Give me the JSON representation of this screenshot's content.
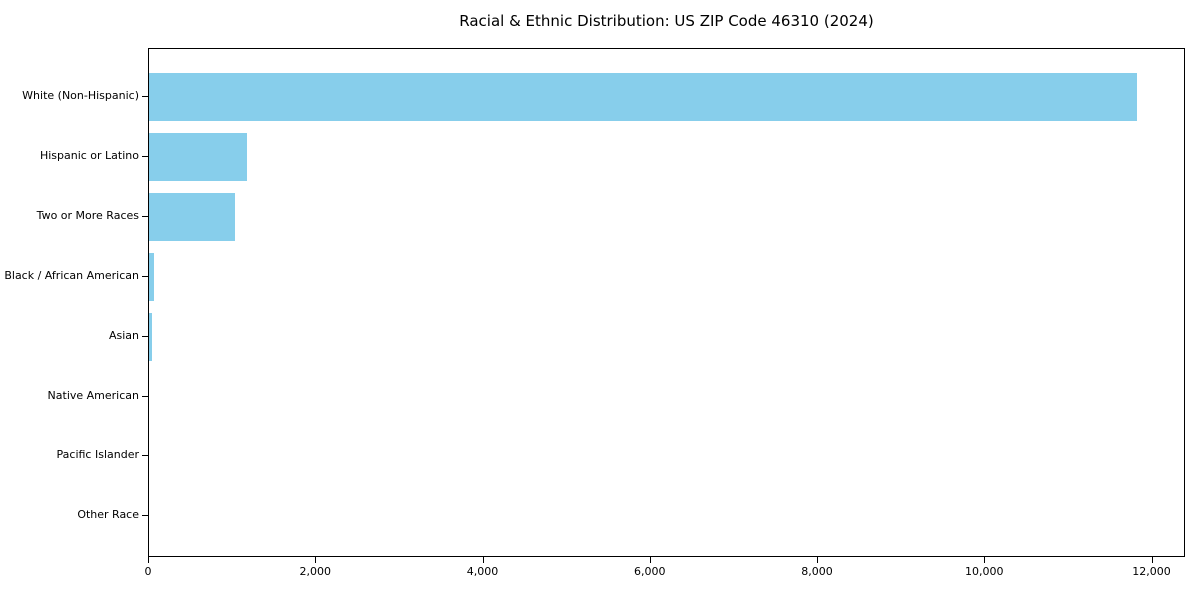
{
  "chart_data": {
    "type": "bar",
    "orientation": "horizontal",
    "title": "Racial & Ethnic Distribution: US ZIP Code 46310 (2024)",
    "categories": [
      "White (Non-Hispanic)",
      "Hispanic or Latino",
      "Two or More Races",
      "Black / African American",
      "Asian",
      "Native American",
      "Pacific Islander",
      "Other Race"
    ],
    "values": [
      11810,
      1175,
      1030,
      55,
      35,
      0,
      0,
      0
    ],
    "xlabel": "",
    "ylabel": "",
    "xlim": [
      0,
      12400
    ],
    "x_ticks": [
      0,
      2000,
      4000,
      6000,
      8000,
      10000,
      12000
    ],
    "x_tick_labels": [
      "0",
      "2,000",
      "4,000",
      "6,000",
      "8,000",
      "10,000",
      "12,000"
    ],
    "bar_color": "#87CEEB",
    "axis_color": "#000000",
    "background_color": "#FFFFFF",
    "grid": false,
    "legend": null
  }
}
